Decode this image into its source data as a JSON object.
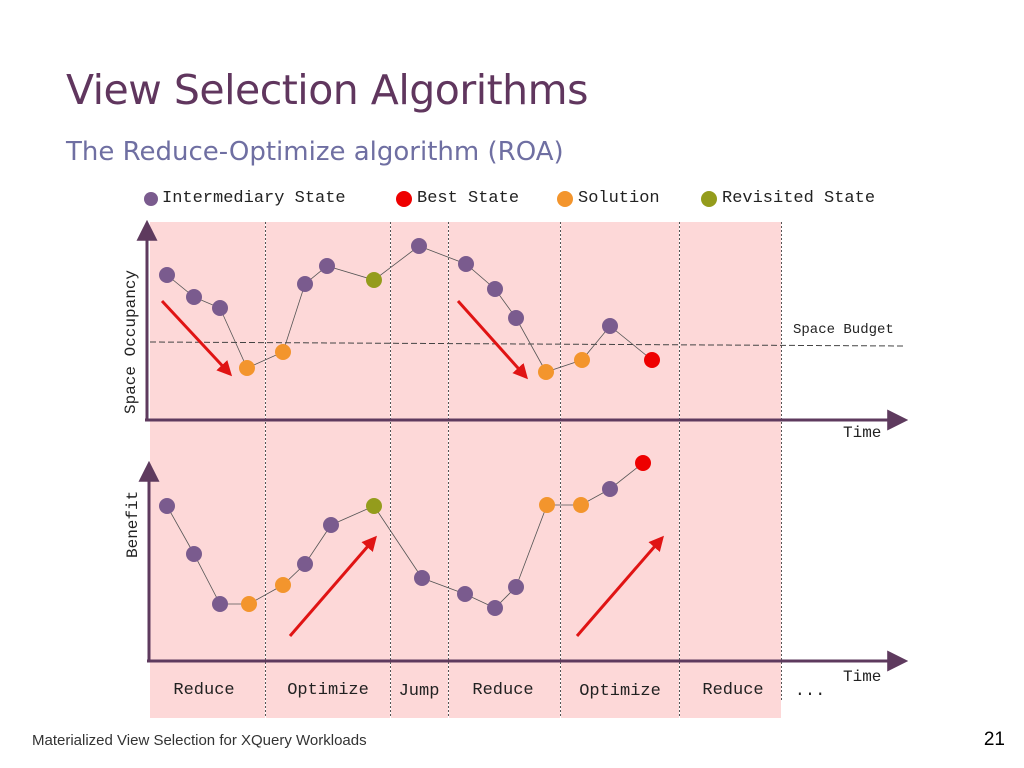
{
  "slide": {
    "title": "View Selection Algorithms",
    "subtitle": "The Reduce-Optimize algorithm (ROA)",
    "footer": "Materialized View Selection for XQuery Workloads",
    "page_number": "21"
  },
  "legend": {
    "intermediary": "Intermediary State",
    "best": "Best State",
    "solution": "Solution",
    "revisited": "Revisited State"
  },
  "top_plot": {
    "y_label": "Space Occupancy",
    "x_label": "Time",
    "budget_label": "Space Budget"
  },
  "bottom_plot": {
    "y_label": "Benefit",
    "x_label": "Time"
  },
  "phases": [
    "Reduce",
    "Optimize",
    "Jump",
    "Reduce",
    "Optimize",
    "Reduce"
  ],
  "ellipsis": "...",
  "colors": {
    "title": "#60365e",
    "subtitle": "#6f6fa2",
    "axis": "#5e3a5e",
    "region": "#fdd8d8",
    "intermediary": "#7a5b8e",
    "best": "#ee0000",
    "solution": "#f3952d",
    "revisited": "#949c1c",
    "arrow": "#e01414"
  },
  "icons": {
    "legend_marker": "filled-circle",
    "trend_arrow": "red-diagonal-arrow"
  }
}
